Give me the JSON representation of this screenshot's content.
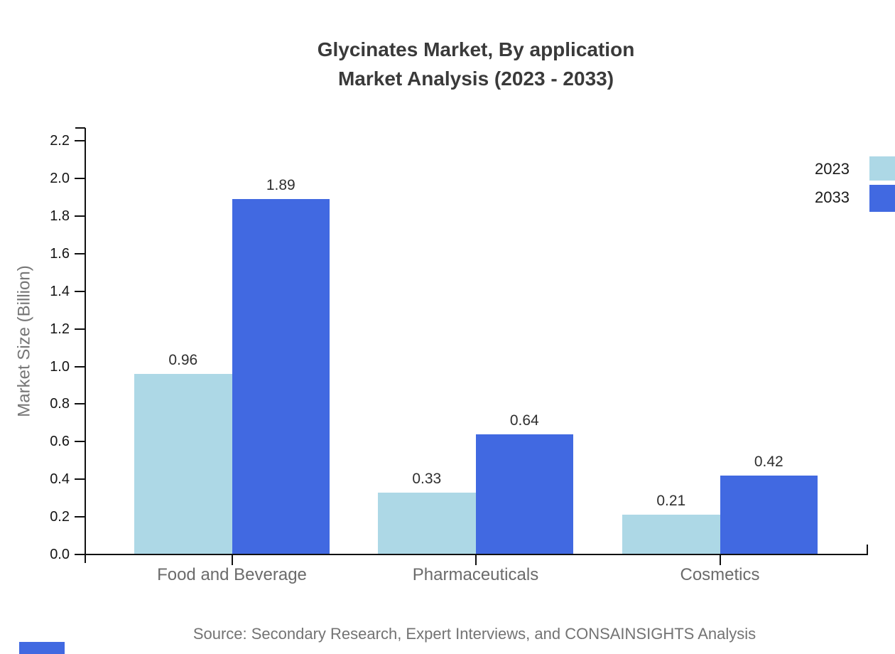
{
  "title": {
    "line1": "Glycinates Market, By application",
    "line2": "Market Analysis (2023 - 2033)"
  },
  "chart_data": {
    "type": "bar",
    "categories": [
      "Food and Beverage",
      "Pharmaceuticals",
      "Cosmetics"
    ],
    "series": [
      {
        "name": "2023",
        "color": "#ADD8E6",
        "values": [
          0.96,
          0.33,
          0.21
        ]
      },
      {
        "name": "2033",
        "color": "#4169E1",
        "values": [
          1.89,
          0.64,
          0.42
        ]
      }
    ],
    "title": "Glycinates Market, By application Market Analysis (2023 - 2033)",
    "xlabel": "",
    "ylabel": "Market Size (Billion)",
    "ylim": [
      0,
      2.2
    ],
    "yticks": [
      "0.0",
      "0.2",
      "0.4",
      "0.6",
      "0.8",
      "1.0",
      "1.2",
      "1.4",
      "1.6",
      "1.8",
      "2.0",
      "2.2"
    ],
    "grid": false,
    "legend_position": "top-right",
    "value_labels": [
      "0.96",
      "1.89",
      "0.33",
      "0.64",
      "0.21",
      "0.42"
    ]
  },
  "legend": {
    "items": [
      {
        "label": "2023",
        "color": "#ADD8E6"
      },
      {
        "label": "2033",
        "color": "#4169E1"
      }
    ]
  },
  "source": {
    "text": "Source: Secondary Research, Expert Interviews, and CONSAINSIGHTS Analysis"
  },
  "colors": {
    "axis": "#111111",
    "title_text": "#3a3a3a",
    "value_label_text": "#2f2f2f",
    "tick_label_text": "#141414",
    "category_text": "#6b6b6b",
    "muted_text": "#737373",
    "series_2023": "#ADD8E6",
    "series_2033": "#4169E1",
    "logo_fragment": "#4169E1"
  }
}
